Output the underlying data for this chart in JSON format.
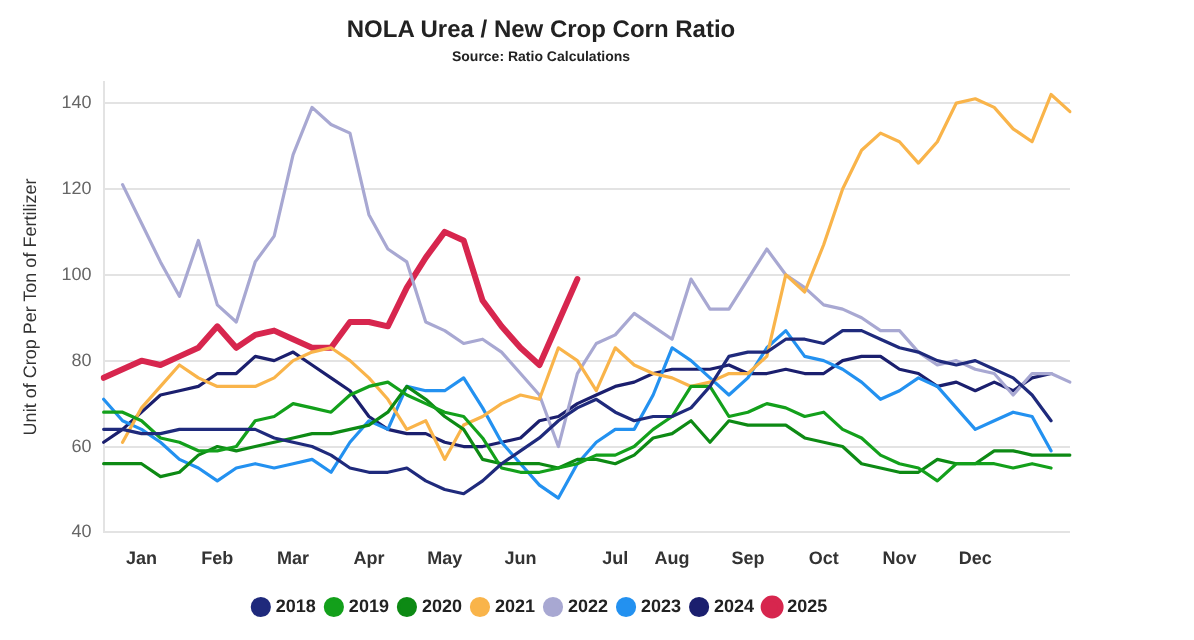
{
  "chart_data": {
    "type": "line",
    "title": "NOLA Urea / New Crop Corn Ratio",
    "subtitle": "Source: Ratio Calculations",
    "ylabel": "Unit of Crop Per Ton of Fertilizer",
    "categories": [
      null,
      null,
      "Jan",
      null,
      null,
      null,
      "Feb",
      null,
      null,
      null,
      "Mar",
      null,
      null,
      null,
      "Apr",
      null,
      null,
      null,
      "May",
      null,
      null,
      null,
      "Jun",
      null,
      null,
      null,
      null,
      "Jul",
      null,
      null,
      "Aug",
      null,
      null,
      null,
      "Sep",
      null,
      null,
      null,
      "Oct",
      null,
      null,
      null,
      "Nov",
      null,
      null,
      null,
      "Dec",
      null,
      null,
      null,
      null,
      null
    ],
    "series": [
      {
        "name": "2018",
        "color": "#1f2a7c",
        "values": [
          64,
          64,
          63,
          63,
          64,
          64,
          64,
          64,
          64,
          62,
          61,
          60,
          58,
          55,
          54,
          54,
          55,
          52,
          50,
          49,
          52,
          56,
          59,
          62,
          66,
          69,
          71,
          68,
          66,
          67,
          67,
          69,
          74,
          81,
          82,
          82,
          85,
          85,
          84,
          87,
          87,
          85,
          83,
          82,
          80,
          79,
          80,
          78,
          76,
          72,
          66,
          null
        ]
      },
      {
        "name": "2019",
        "color": "#13a01b",
        "values": [
          68,
          68,
          66,
          62,
          61,
          59,
          59,
          60,
          66,
          67,
          70,
          69,
          68,
          72,
          74,
          75,
          72,
          70,
          68,
          67,
          62,
          55,
          54,
          54,
          55,
          56,
          58,
          58,
          60,
          64,
          67,
          74,
          74,
          67,
          68,
          70,
          69,
          67,
          68,
          64,
          62,
          58,
          56,
          55,
          52,
          56,
          56,
          56,
          55,
          56,
          55,
          null
        ]
      },
      {
        "name": "2020",
        "color": "#0d8a14",
        "values": [
          56,
          56,
          56,
          53,
          54,
          58,
          60,
          59,
          60,
          61,
          62,
          63,
          63,
          64,
          65,
          68,
          74,
          71,
          67,
          64,
          57,
          56,
          56,
          56,
          55,
          57,
          57,
          56,
          58,
          62,
          63,
          66,
          61,
          66,
          65,
          65,
          65,
          62,
          61,
          60,
          56,
          55,
          54,
          54,
          57,
          56,
          56,
          59,
          59,
          58,
          58,
          58
        ]
      },
      {
        "name": "2021",
        "color": "#f9b44a",
        "values": [
          null,
          61,
          69,
          74,
          79,
          76,
          74,
          74,
          74,
          76,
          80,
          82,
          83,
          80,
          76,
          71,
          64,
          66,
          57,
          65,
          67,
          70,
          72,
          71,
          83,
          80,
          73,
          83,
          79,
          77,
          76,
          74,
          75,
          77,
          77,
          81,
          100,
          96,
          107,
          120,
          129,
          133,
          131,
          126,
          131,
          140,
          141,
          139,
          134,
          131,
          142,
          138
        ]
      },
      {
        "name": "2022",
        "color": "#a8a8d2",
        "values": [
          null,
          121,
          112,
          103,
          95,
          108,
          93,
          89,
          103,
          109,
          128,
          139,
          135,
          133,
          114,
          106,
          103,
          89,
          87,
          84,
          85,
          82,
          77,
          72,
          60,
          77,
          84,
          86,
          91,
          88,
          85,
          99,
          92,
          92,
          99,
          106,
          100,
          97,
          93,
          92,
          90,
          87,
          87,
          82,
          79,
          80,
          78,
          77,
          72,
          77,
          77,
          75
        ]
      },
      {
        "name": "2023",
        "color": "#2391f0",
        "values": [
          71,
          66,
          64,
          61,
          57,
          55,
          52,
          55,
          56,
          55,
          56,
          57,
          54,
          61,
          66,
          64,
          74,
          73,
          73,
          76,
          69,
          61,
          56,
          51,
          48,
          56,
          61,
          64,
          64,
          72,
          83,
          80,
          76,
          72,
          76,
          83,
          87,
          81,
          80,
          78,
          75,
          71,
          73,
          76,
          74,
          69,
          64,
          66,
          68,
          67,
          59,
          null
        ]
      },
      {
        "name": "2024",
        "color": "#1b1f6e",
        "values": [
          61,
          64,
          68,
          72,
          73,
          74,
          77,
          77,
          81,
          80,
          82,
          79,
          76,
          73,
          67,
          64,
          63,
          63,
          61,
          60,
          60,
          61,
          62,
          66,
          67,
          70,
          72,
          74,
          75,
          77,
          78,
          78,
          78,
          79,
          77,
          77,
          78,
          77,
          77,
          80,
          81,
          81,
          78,
          77,
          74,
          75,
          73,
          75,
          73,
          76,
          77,
          null
        ]
      },
      {
        "name": "2025",
        "color": "#d7264e",
        "values": [
          76,
          78,
          80,
          79,
          81,
          83,
          88,
          83,
          86,
          87,
          85,
          83,
          83,
          89,
          89,
          88,
          97,
          104,
          110,
          108,
          94,
          88,
          83,
          79,
          89,
          99,
          null,
          null,
          null,
          null,
          null,
          null,
          null,
          null,
          null,
          null,
          null,
          null,
          null,
          null,
          null,
          null,
          null,
          null,
          null,
          null,
          null,
          null,
          null,
          null,
          null,
          null
        ]
      }
    ],
    "ylim": [
      40,
      145
    ],
    "yticks": [
      40,
      60,
      80,
      100,
      120,
      140
    ],
    "grid": "y",
    "legend": "bottom",
    "marker": "none",
    "line_style": "solid"
  }
}
